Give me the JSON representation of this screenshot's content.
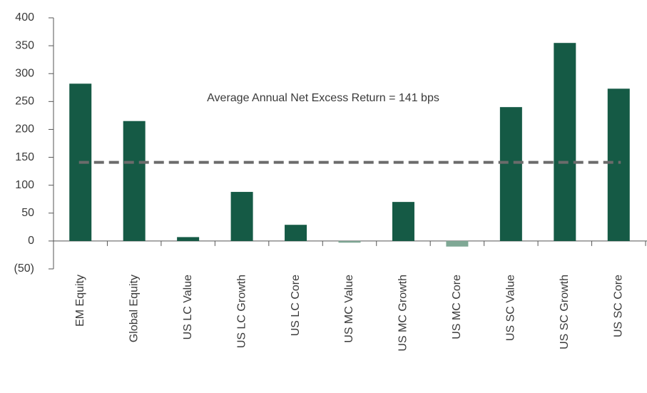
{
  "chart_data": {
    "type": "bar",
    "categories": [
      "EM Equity",
      "Global Equity",
      "US LC Value",
      "US LC Growth",
      "US LC Core",
      "US MC Value",
      "US MC Growth",
      "US MC Core",
      "US SC Value",
      "US SC Growth",
      "US SC Core"
    ],
    "values": [
      282,
      215,
      7,
      88,
      29,
      -3,
      70,
      -10,
      240,
      355,
      273
    ],
    "color": "#155a45",
    "negative_color": "#7fa895",
    "ylim": [
      -50,
      400
    ],
    "yticks": [
      {
        "value": -50,
        "label": "(50)"
      },
      0,
      50,
      100,
      150,
      200,
      250,
      300,
      350,
      400
    ],
    "average": 141,
    "average_color": "#6b6b6b",
    "annotation": "Average Annual Net Excess Return = 141 bps"
  }
}
